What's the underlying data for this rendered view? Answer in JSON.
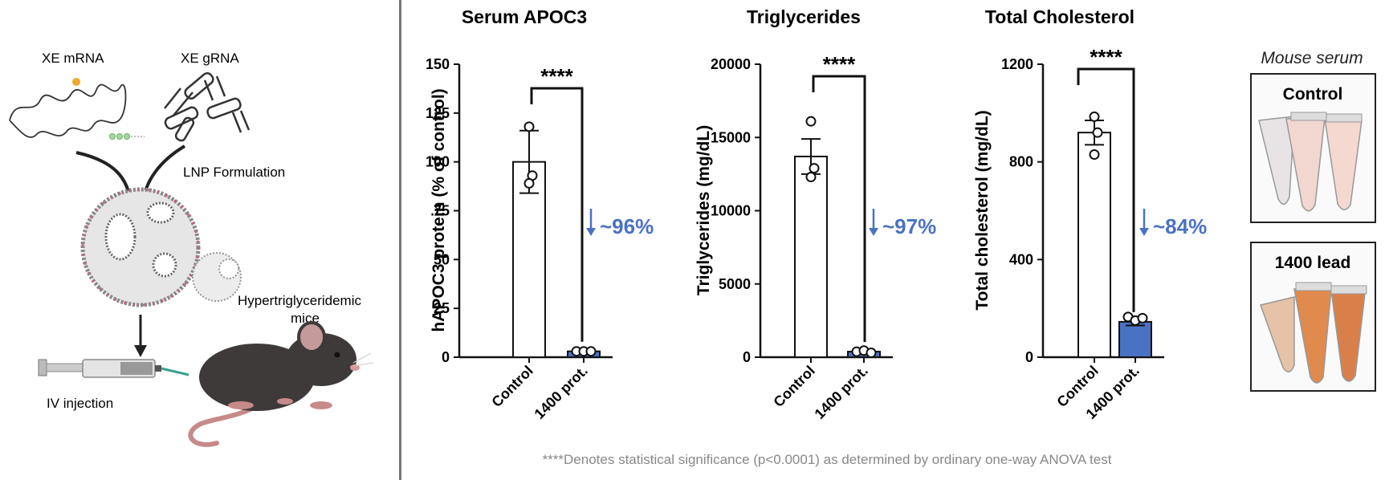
{
  "schematic": {
    "mrna_label": "XE mRNA",
    "grna_label": "XE gRNA",
    "lnp_label": "LNP Formulation",
    "mice_label_line1": "Hypertriglyceridemic",
    "mice_label_line2": "mice",
    "injection_label": "IV injection"
  },
  "chart_data": [
    {
      "type": "bar",
      "title": "Serum APOC3",
      "ylabel": "hAPOC3 protein (% of control)",
      "categories": [
        "Control",
        "1400 prot."
      ],
      "values": [
        100,
        3
      ],
      "errors": [
        16,
        1
      ],
      "points": [
        [
          118,
          93,
          89
        ],
        [
          3,
          3,
          3
        ]
      ],
      "ylim": [
        0,
        150
      ],
      "yticks": [
        "0",
        "25",
        "50",
        "75",
        "100",
        "125",
        "150"
      ],
      "significance": "****",
      "reduction_label": "~96%"
    },
    {
      "type": "bar",
      "title": "Triglycerides",
      "ylabel": "Triglycerides (mg/dL)",
      "categories": [
        "Control",
        "1400 prot."
      ],
      "values": [
        13700,
        380
      ],
      "errors": [
        1200,
        80
      ],
      "points": [
        [
          16100,
          12900,
          12300
        ],
        [
          380,
          450,
          300
        ]
      ],
      "ylim": [
        0,
        20000
      ],
      "yticks": [
        "0",
        "5000",
        "10000",
        "15000",
        "20000"
      ],
      "significance": "****",
      "reduction_label": "~97%"
    },
    {
      "type": "bar",
      "title": "Total Cholesterol",
      "ylabel": "Total cholesterol (mg/dL)",
      "categories": [
        "Control",
        "1400 prot."
      ],
      "values": [
        920,
        145
      ],
      "errors": [
        50,
        15
      ],
      "points": [
        [
          985,
          920,
          830
        ],
        [
          165,
          150,
          160
        ]
      ],
      "ylim": [
        0,
        1200
      ],
      "yticks": [
        "0",
        "400",
        "800",
        "1200"
      ],
      "significance": "****",
      "reduction_label": "~84%"
    }
  ],
  "serum": {
    "title": "Mouse serum",
    "control_label": "Control",
    "lead_label": "1400 lead"
  },
  "footnote": "****Denotes statistical significance (p<0.0001) as determined by ordinary one-way ANOVA test",
  "colors": {
    "treated_bar": "#4a72c4",
    "reduction_text": "#4a72c4",
    "control_bar": "#ffffff"
  }
}
